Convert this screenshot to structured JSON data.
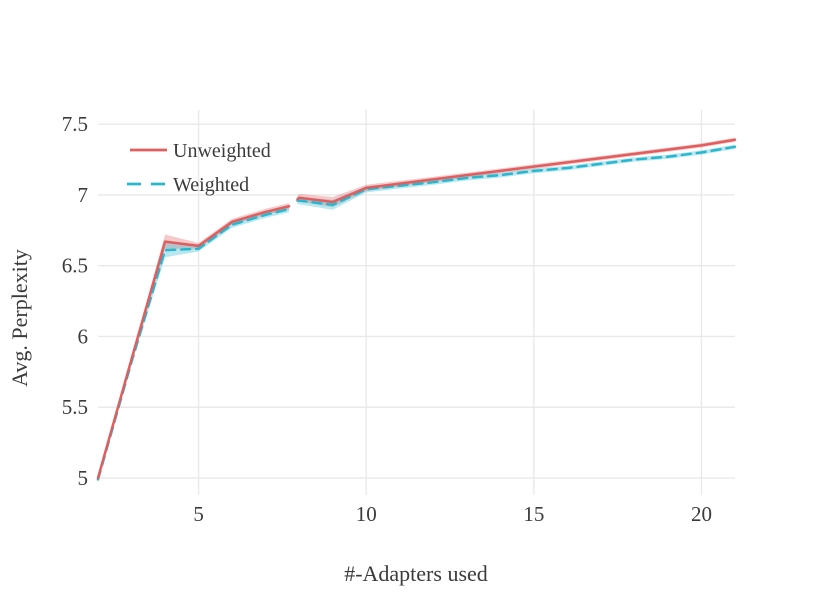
{
  "figure": {
    "background": "#ffffff",
    "text_color": "#3b3b3b",
    "grid_color": "#e9e9e9"
  },
  "chart_data": {
    "type": "line",
    "title": "",
    "xlabel": "#-Adapters used",
    "ylabel": "Avg. Perplexity",
    "xlim": [
      2,
      21
    ],
    "ylim": [
      4.88,
      7.6
    ],
    "xticks": [
      5,
      10,
      15,
      20
    ],
    "xtick_labels": [
      "5",
      "10",
      "15",
      "20"
    ],
    "yticks": [
      5,
      5.5,
      6,
      6.5,
      7,
      7.5
    ],
    "ytick_labels": [
      "5",
      "5.5",
      "6",
      "6.5",
      "7",
      "7.5"
    ],
    "grid": true,
    "legend": {
      "position": "top-left-inside",
      "entries": [
        "Unweighted",
        "Weighted"
      ]
    },
    "series": [
      {
        "name": "Unweighted",
        "color": "#e25d5d",
        "band_color": "rgba(226,93,93,0.33)",
        "style": "solid",
        "dash": "",
        "segments": [
          {
            "x": [
              2,
              3,
              4,
              5,
              6,
              7,
              7.7
            ],
            "y": [
              5.0,
              5.84,
              6.67,
              6.64,
              6.81,
              6.88,
              6.92
            ],
            "band": [
              0.012,
              0.02,
              0.05,
              0.02,
              0.022,
              0.022,
              0.022
            ]
          },
          {
            "x": [
              7.95,
              8,
              9,
              10,
              11,
              12,
              13,
              14,
              15,
              16,
              17,
              18,
              19,
              20,
              21
            ],
            "y": [
              6.97,
              6.98,
              6.95,
              7.05,
              7.08,
              7.11,
              7.14,
              7.17,
              7.2,
              7.23,
              7.26,
              7.29,
              7.32,
              7.35,
              7.39
            ],
            "band": [
              0.025,
              0.027,
              0.035,
              0.022,
              0.02,
              0.018,
              0.018,
              0.017,
              0.017,
              0.016,
              0.016,
              0.015,
              0.015,
              0.015,
              0.015
            ]
          }
        ]
      },
      {
        "name": "Weighted",
        "color": "#29b7ce",
        "band_color": "rgba(41,183,206,0.33)",
        "style": "dashed",
        "dash": "9 6",
        "segments": [
          {
            "x": [
              2,
              3,
              4,
              5,
              6,
              7,
              7.7
            ],
            "y": [
              4.99,
              5.82,
              6.61,
              6.62,
              6.79,
              6.86,
              6.9
            ],
            "band": [
              0.012,
              0.02,
              0.05,
              0.02,
              0.022,
              0.022,
              0.022
            ]
          },
          {
            "x": [
              7.95,
              8,
              9,
              10,
              11,
              12,
              13,
              14,
              15,
              16,
              17,
              18,
              19,
              20,
              21
            ],
            "y": [
              6.96,
              6.96,
              6.93,
              7.04,
              7.065,
              7.09,
              7.12,
              7.14,
              7.17,
              7.19,
              7.22,
              7.25,
              7.27,
              7.3,
              7.34
            ],
            "band": [
              0.025,
              0.027,
              0.035,
              0.022,
              0.02,
              0.018,
              0.018,
              0.017,
              0.017,
              0.016,
              0.016,
              0.015,
              0.015,
              0.015,
              0.015
            ]
          }
        ]
      }
    ]
  }
}
